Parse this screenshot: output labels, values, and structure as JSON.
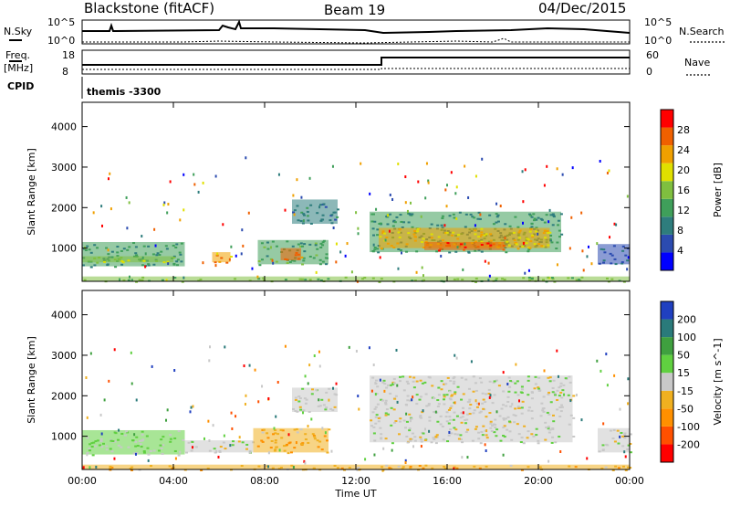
{
  "header": {
    "station": "Blackstone (fitACF)",
    "beam": "Beam 19",
    "date": "04/Dec/2015"
  },
  "top_panels": {
    "nsky_label": "N.Sky",
    "nsky_ticks": [
      "10^5",
      "10^0"
    ],
    "nsearch_label": "N.Search",
    "freq_label_1": "Freq.",
    "freq_label_2": "[MHz]",
    "freq_ticks": [
      "18",
      "8"
    ],
    "nave_label": "Nave",
    "nave_ticks": [
      "60",
      "0"
    ],
    "cpid_label": "CPID",
    "cpid_value": "themis -3300"
  },
  "chart_data": [
    {
      "type": "heatmap",
      "title": "",
      "xlabel": "Time UT",
      "ylabel": "Slant Range [km]",
      "x_ticks": [
        "00:00",
        "04:00",
        "08:00",
        "12:00",
        "16:00",
        "20:00",
        "00:00"
      ],
      "xlim_hours": [
        0,
        24
      ],
      "y_ticks": [
        "1000",
        "2000",
        "3000",
        "4000"
      ],
      "ylim_km": [
        180,
        4600
      ],
      "colorbar": {
        "label": "Power [dB]",
        "ticks": [
          "4",
          "8",
          "12",
          "16",
          "20",
          "24",
          "28"
        ],
        "range": [
          0,
          30
        ],
        "colors": [
          "#0000ff",
          "#2b4bb0",
          "#2e7d7d",
          "#3f9f5a",
          "#7fbf3f",
          "#e0e000",
          "#f0a000",
          "#f06000",
          "#ff0000"
        ]
      },
      "regions": [
        {
          "t0": 0.0,
          "t1": 4.5,
          "r0": 550,
          "r1": 1150,
          "value": 10
        },
        {
          "t0": 0.0,
          "t1": 4.0,
          "r0": 650,
          "r1": 800,
          "value": 16
        },
        {
          "t0": 5.7,
          "t1": 6.5,
          "r0": 650,
          "r1": 900,
          "value": 22
        },
        {
          "t0": 7.7,
          "t1": 10.8,
          "r0": 600,
          "r1": 1200,
          "value": 12
        },
        {
          "t0": 8.7,
          "t1": 9.6,
          "r0": 700,
          "r1": 1000,
          "value": 24
        },
        {
          "t0": 12.6,
          "t1": 21.0,
          "r0": 900,
          "r1": 1900,
          "value": 10
        },
        {
          "t0": 13.0,
          "t1": 20.5,
          "r0": 1000,
          "r1": 1500,
          "value": 20
        },
        {
          "t0": 15.0,
          "t1": 18.5,
          "r0": 950,
          "r1": 1150,
          "value": 26
        },
        {
          "t0": 9.2,
          "t1": 11.2,
          "r0": 1600,
          "r1": 2200,
          "value": 8
        },
        {
          "t0": 0.0,
          "t1": 24.0,
          "r0": 180,
          "r1": 300,
          "value": 14
        },
        {
          "t0": 22.6,
          "t1": 24.0,
          "r0": 600,
          "r1": 1100,
          "value": 6
        }
      ]
    },
    {
      "type": "heatmap",
      "title": "",
      "xlabel": "Time UT",
      "ylabel": "Slant Range [km]",
      "x_ticks": [
        "00:00",
        "04:00",
        "08:00",
        "12:00",
        "16:00",
        "20:00",
        "00:00"
      ],
      "xlim_hours": [
        0,
        24
      ],
      "y_ticks": [
        "1000",
        "2000",
        "3000",
        "4000"
      ],
      "ylim_km": [
        180,
        4600
      ],
      "colorbar": {
        "label": "Velocity [m s^-1]",
        "ticks": [
          "200",
          "100",
          "50",
          "15",
          "-15",
          "-50",
          "-100",
          "-200"
        ],
        "range": [
          -250,
          250
        ],
        "colors": [
          "#ff0000",
          "#ff5000",
          "#ff9000",
          "#f0b020",
          "#c8c8c8",
          "#60d040",
          "#3fa03f",
          "#2a7a7a",
          "#2040c0"
        ]
      },
      "regions": [
        {
          "t0": 0.0,
          "t1": 4.5,
          "r0": 550,
          "r1": 1150,
          "value": 30
        },
        {
          "t0": 4.5,
          "t1": 7.5,
          "r0": 600,
          "r1": 900,
          "value": 0
        },
        {
          "t0": 7.5,
          "t1": 10.8,
          "r0": 600,
          "r1": 1200,
          "value": -70
        },
        {
          "t0": 12.6,
          "t1": 21.5,
          "r0": 850,
          "r1": 2500,
          "value": 0
        },
        {
          "t0": 9.2,
          "t1": 11.2,
          "r0": 1600,
          "r1": 2200,
          "value": 0
        },
        {
          "t0": 0.0,
          "t1": 24.0,
          "r0": 180,
          "r1": 300,
          "value": -60
        },
        {
          "t0": 22.6,
          "t1": 24.0,
          "r0": 600,
          "r1": 1200,
          "value": 0
        }
      ]
    }
  ]
}
